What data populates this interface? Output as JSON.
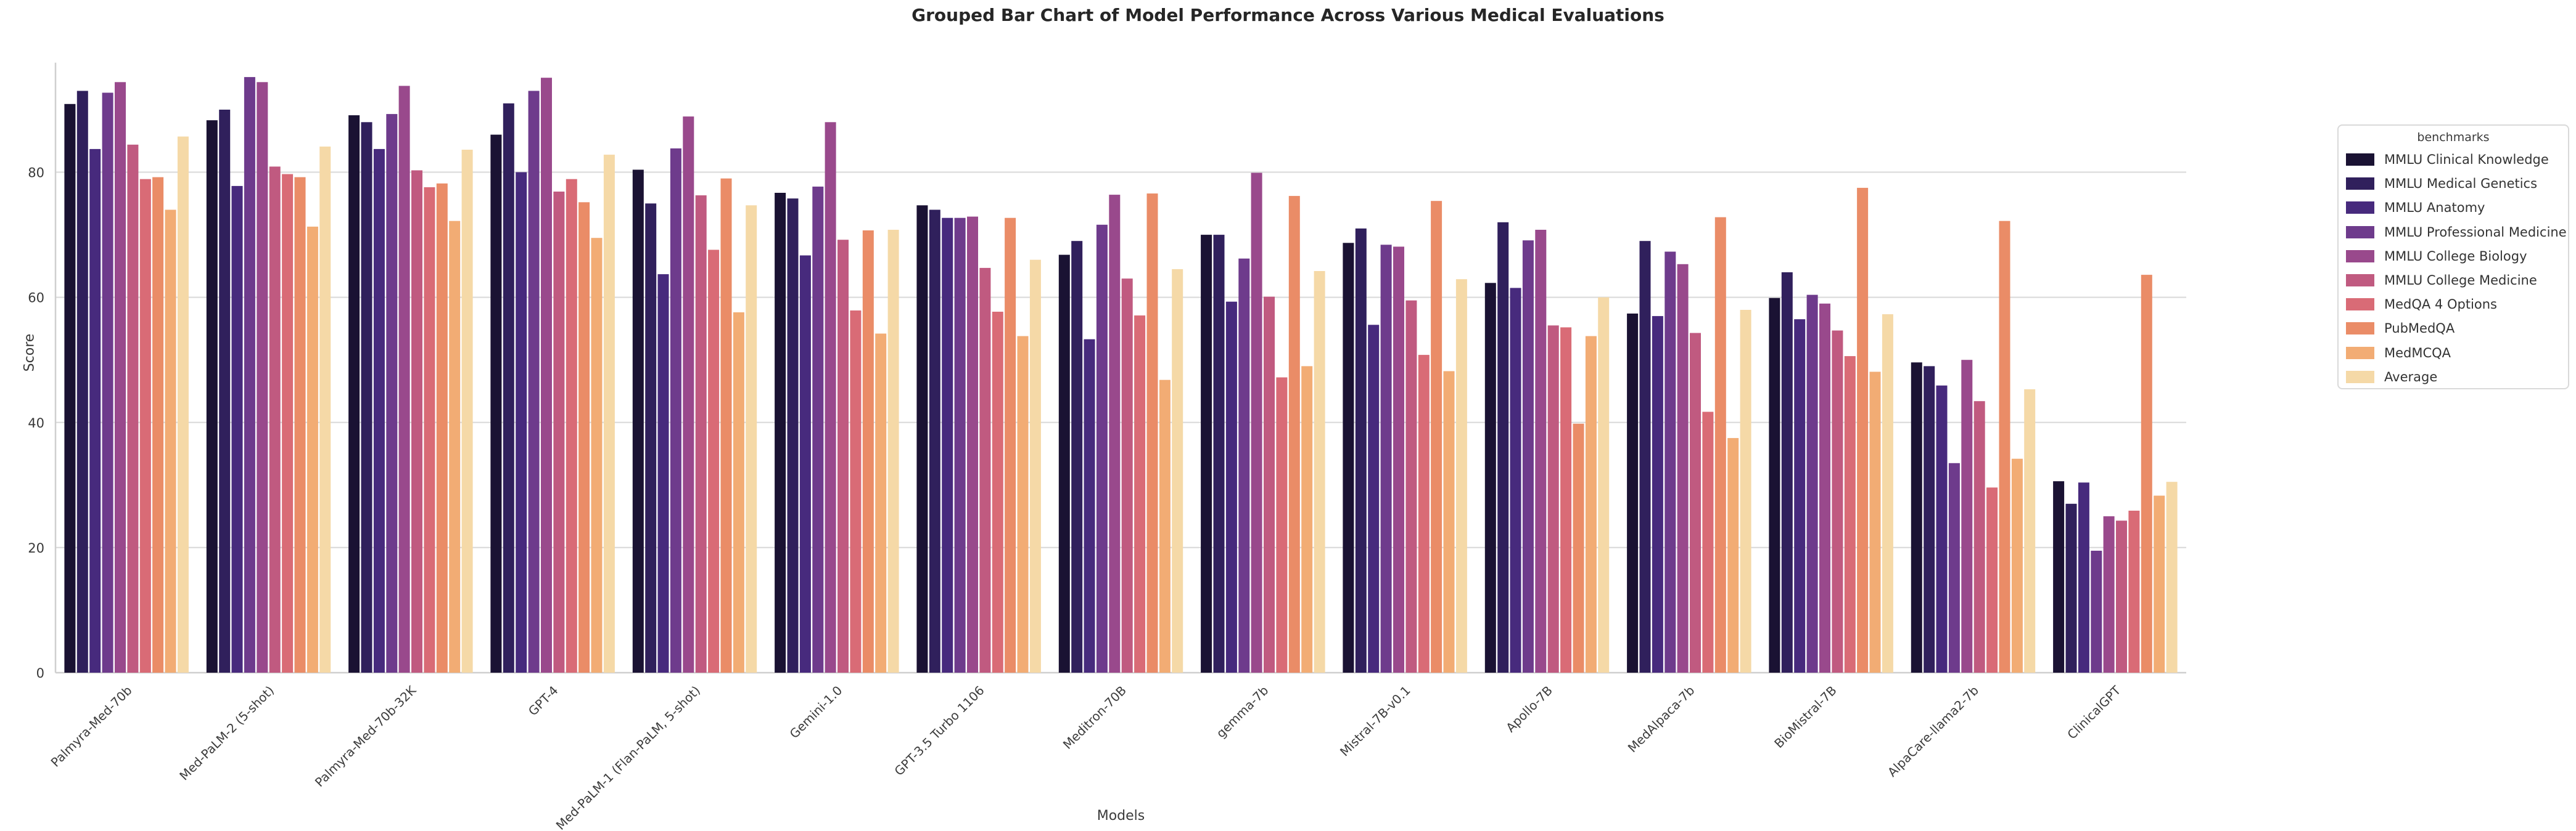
{
  "figure": {
    "background": "#ffffff",
    "grid_color": "#dcdcdc",
    "spine_color": "#cfcfcf",
    "tick_label_color": "#3a3a3a",
    "title_color": "#262626"
  },
  "chart_data": {
    "type": "bar",
    "title": "Grouped Bar Chart of Model Performance Across Various Medical Evaluations",
    "xlabel": "Models",
    "ylabel": "Score",
    "legend_title": "benchmarks",
    "legend_position": "right, outside axes",
    "grid": "horizontal gridlines on",
    "ylim": [
      0,
      97.5
    ],
    "yticks": [
      0,
      20,
      40,
      60,
      80
    ],
    "categories": [
      "Palmyra-Med-70b",
      "Med-PaLM-2 (5-shot)",
      "Palmyra-Med-70b-32K",
      "GPT-4",
      "Med-PaLM-1 (Flan-PaLM, 5-shot)",
      "Gemini-1.0",
      "GPT-3.5 Turbo 1106",
      "Meditron-70B",
      "gemma-7b",
      "Mistral-7B-v0.1",
      "Apollo-7B",
      "MedAlpaca-7b",
      "BioMistral-7B",
      "AlpaCare-llama2-7b",
      "ClinicalGPT"
    ],
    "series": [
      {
        "name": "MMLU Clinical Knowledge",
        "color": "#1a1233",
        "values": [
          90.9,
          88.3,
          89.1,
          86.0,
          80.4,
          76.7,
          74.7,
          66.8,
          70.0,
          68.7,
          62.3,
          57.4,
          59.9,
          49.6,
          30.6
        ]
      },
      {
        "name": "MMLU Medical Genetics",
        "color": "#30205c",
        "values": [
          93.0,
          90.0,
          88.0,
          91.0,
          75.0,
          75.8,
          74.0,
          69.0,
          70.0,
          71.0,
          72.0,
          69.0,
          64.0,
          49.0,
          27.0
        ]
      },
      {
        "name": "MMLU Anatomy",
        "color": "#472a7d",
        "values": [
          83.7,
          77.8,
          83.7,
          80.0,
          63.7,
          66.7,
          72.7,
          53.3,
          59.3,
          55.6,
          61.5,
          57.0,
          56.5,
          45.9,
          30.4
        ]
      },
      {
        "name": "MMLU Professional Medicine",
        "color": "#6e3b8c",
        "values": [
          92.7,
          95.2,
          89.3,
          93.0,
          83.8,
          77.7,
          72.7,
          71.6,
          66.2,
          68.4,
          69.1,
          67.3,
          60.4,
          33.5,
          19.5
        ]
      },
      {
        "name": "MMLU College Biology",
        "color": "#99498c",
        "values": [
          94.4,
          94.4,
          93.8,
          95.1,
          88.9,
          88.0,
          72.9,
          76.4,
          79.9,
          68.1,
          70.8,
          65.3,
          59.0,
          50.0,
          25.0
        ]
      },
      {
        "name": "MMLU College Medicine",
        "color": "#c05a80",
        "values": [
          84.4,
          80.9,
          80.3,
          76.9,
          76.3,
          69.2,
          64.7,
          63.0,
          60.1,
          59.5,
          55.5,
          54.3,
          54.7,
          43.4,
          24.3
        ]
      },
      {
        "name": "MedQA 4 Options",
        "color": "#d96b76",
        "values": [
          78.9,
          79.7,
          77.6,
          78.9,
          67.6,
          57.9,
          57.7,
          57.1,
          47.2,
          50.8,
          55.2,
          41.7,
          50.6,
          29.6,
          25.9
        ]
      },
      {
        "name": "PubMedQA",
        "color": "#ea8c67",
        "values": [
          79.2,
          79.2,
          78.2,
          75.2,
          79.0,
          70.7,
          72.7,
          76.6,
          76.2,
          75.4,
          39.8,
          72.8,
          77.5,
          72.2,
          63.6
        ]
      },
      {
        "name": "MedMCQA",
        "color": "#f2ac74",
        "values": [
          74.0,
          71.3,
          72.2,
          69.5,
          57.6,
          54.2,
          53.8,
          46.8,
          49.0,
          48.2,
          53.8,
          37.5,
          48.1,
          34.2,
          28.3
        ]
      },
      {
        "name": "Average",
        "color": "#f5d9a7",
        "values": [
          85.7,
          84.1,
          83.6,
          82.8,
          74.7,
          70.8,
          66.0,
          64.5,
          64.2,
          62.9,
          60.0,
          58.0,
          57.3,
          45.3,
          30.5
        ]
      }
    ]
  }
}
